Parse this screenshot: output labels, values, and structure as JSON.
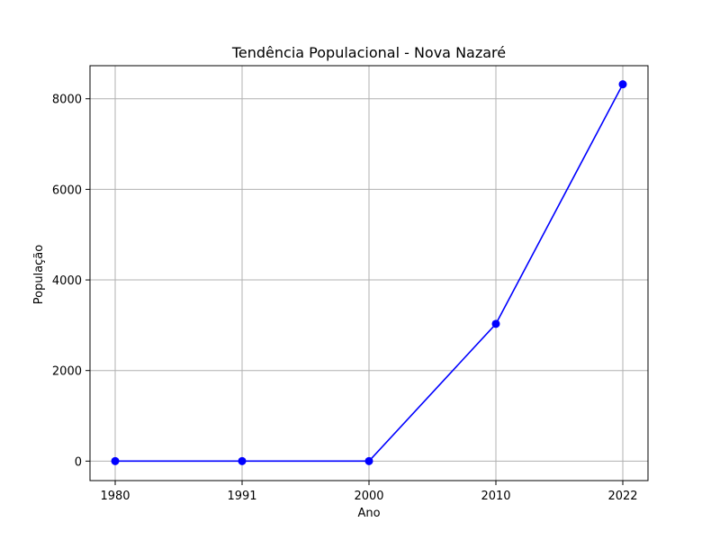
{
  "chart_data": {
    "type": "line",
    "title": "Tendência Populacional - Nova Nazaré",
    "xlabel": "Ano",
    "ylabel": "População",
    "categories": [
      "1980",
      "1991",
      "2000",
      "2010",
      "2022"
    ],
    "series": [
      {
        "values": [
          0,
          0,
          0,
          3030,
          8320
        ],
        "color": "#0000ff"
      }
    ],
    "yticks": [
      0,
      2000,
      4000,
      6000,
      8000
    ],
    "ylim": [
      -430,
      8730
    ],
    "grid": true,
    "marker": "circle"
  }
}
